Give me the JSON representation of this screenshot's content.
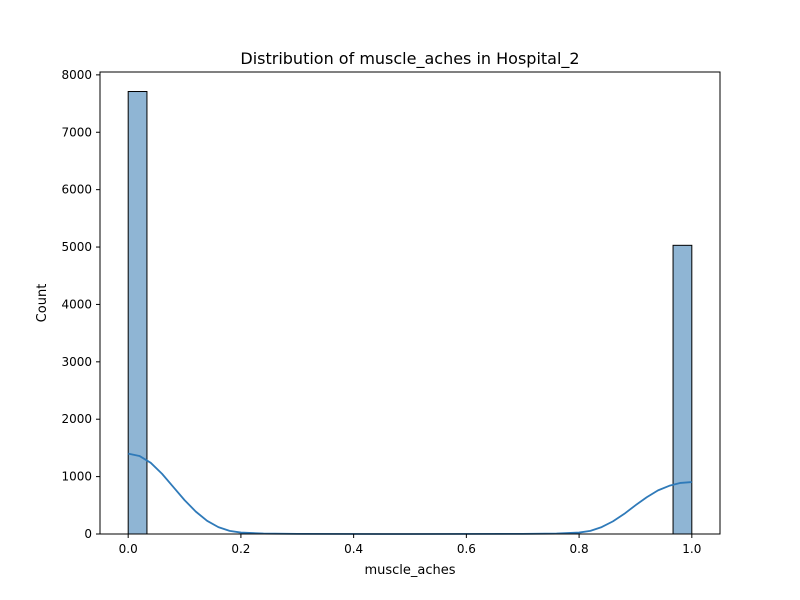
{
  "chart_data": {
    "type": "bar",
    "title": "Distribution of muscle_aches in Hospital_2",
    "xlabel": "muscle_aches",
    "ylabel": "Count",
    "xlim": [
      -0.05,
      1.05
    ],
    "ylim": [
      0,
      8050
    ],
    "x_ticks": [
      "0.0",
      "0.2",
      "0.4",
      "0.6",
      "0.8",
      "1.0"
    ],
    "y_ticks": [
      "0",
      "1000",
      "2000",
      "3000",
      "4000",
      "5000",
      "6000",
      "7000",
      "8000"
    ],
    "grid": false,
    "legend": "none",
    "bars": [
      {
        "x0": 0.0,
        "x1": 0.0333,
        "count": 7710
      },
      {
        "x0": 0.9667,
        "x1": 1.0,
        "count": 5030
      }
    ],
    "kde": {
      "x": [
        0.0,
        0.02,
        0.04,
        0.06,
        0.08,
        0.1,
        0.12,
        0.14,
        0.16,
        0.18,
        0.2,
        0.24,
        0.3,
        0.5,
        0.7,
        0.76,
        0.8,
        0.82,
        0.84,
        0.86,
        0.88,
        0.9,
        0.92,
        0.94,
        0.96,
        0.98,
        1.0
      ],
      "y": [
        1400,
        1360,
        1240,
        1050,
        820,
        590,
        390,
        230,
        120,
        55,
        25,
        8,
        2,
        0,
        2,
        8,
        25,
        55,
        120,
        220,
        350,
        500,
        640,
        760,
        840,
        890,
        905
      ]
    },
    "colors": {
      "bar_fill": "#8fb5d4",
      "bar_edge": "#000000",
      "kde_line": "#2f7ab9"
    }
  }
}
